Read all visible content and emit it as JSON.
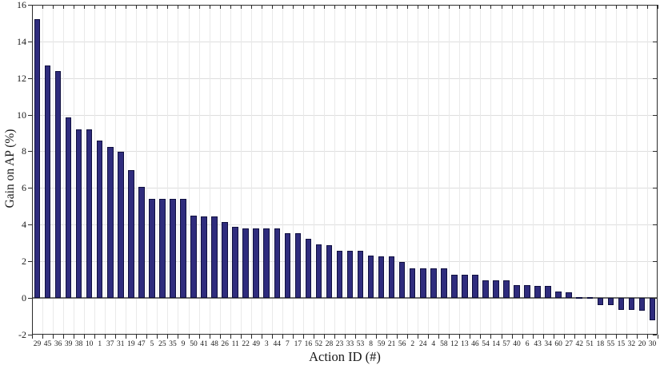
{
  "chart_data": {
    "type": "bar",
    "title": "",
    "xlabel": "Action ID (#)",
    "ylabel": "Gain on AP (%)",
    "ylim": [
      -2,
      16
    ],
    "yticks": [
      16,
      14,
      12,
      10,
      8,
      6,
      4,
      2,
      0,
      -2
    ],
    "grid": true,
    "legend": "none",
    "bar_color": "#2f2c7d",
    "bar_edge_color": "#101040",
    "categories": [
      "29",
      "45",
      "36",
      "39",
      "38",
      "10",
      "1",
      "37",
      "31",
      "19",
      "47",
      "5",
      "25",
      "35",
      "9",
      "50",
      "41",
      "48",
      "26",
      "11",
      "22",
      "49",
      "3",
      "44",
      "7",
      "17",
      "16",
      "52",
      "28",
      "23",
      "33",
      "53",
      "8",
      "59",
      "21",
      "56",
      "2",
      "24",
      "4",
      "58",
      "12",
      "13",
      "46",
      "54",
      "14",
      "57",
      "40",
      "6",
      "43",
      "34",
      "60",
      "27",
      "42",
      "51",
      "18",
      "55",
      "15",
      "32",
      "20",
      "30"
    ],
    "values": [
      15.2,
      12.7,
      12.4,
      9.85,
      9.2,
      9.2,
      8.6,
      8.25,
      7.95,
      6.95,
      6.05,
      5.4,
      5.4,
      5.4,
      5.4,
      4.5,
      4.45,
      4.45,
      4.15,
      3.85,
      3.8,
      3.8,
      3.8,
      3.8,
      3.5,
      3.5,
      3.2,
      2.9,
      2.85,
      2.55,
      2.55,
      2.55,
      2.3,
      2.25,
      2.25,
      1.95,
      1.6,
      1.6,
      1.6,
      1.6,
      1.25,
      1.25,
      1.25,
      0.95,
      0.95,
      0.95,
      0.7,
      0.7,
      0.65,
      0.65,
      0.35,
      0.3,
      0.05,
      0.02,
      -0.4,
      -0.4,
      -0.65,
      -0.65,
      -0.7,
      -1.25
    ]
  }
}
